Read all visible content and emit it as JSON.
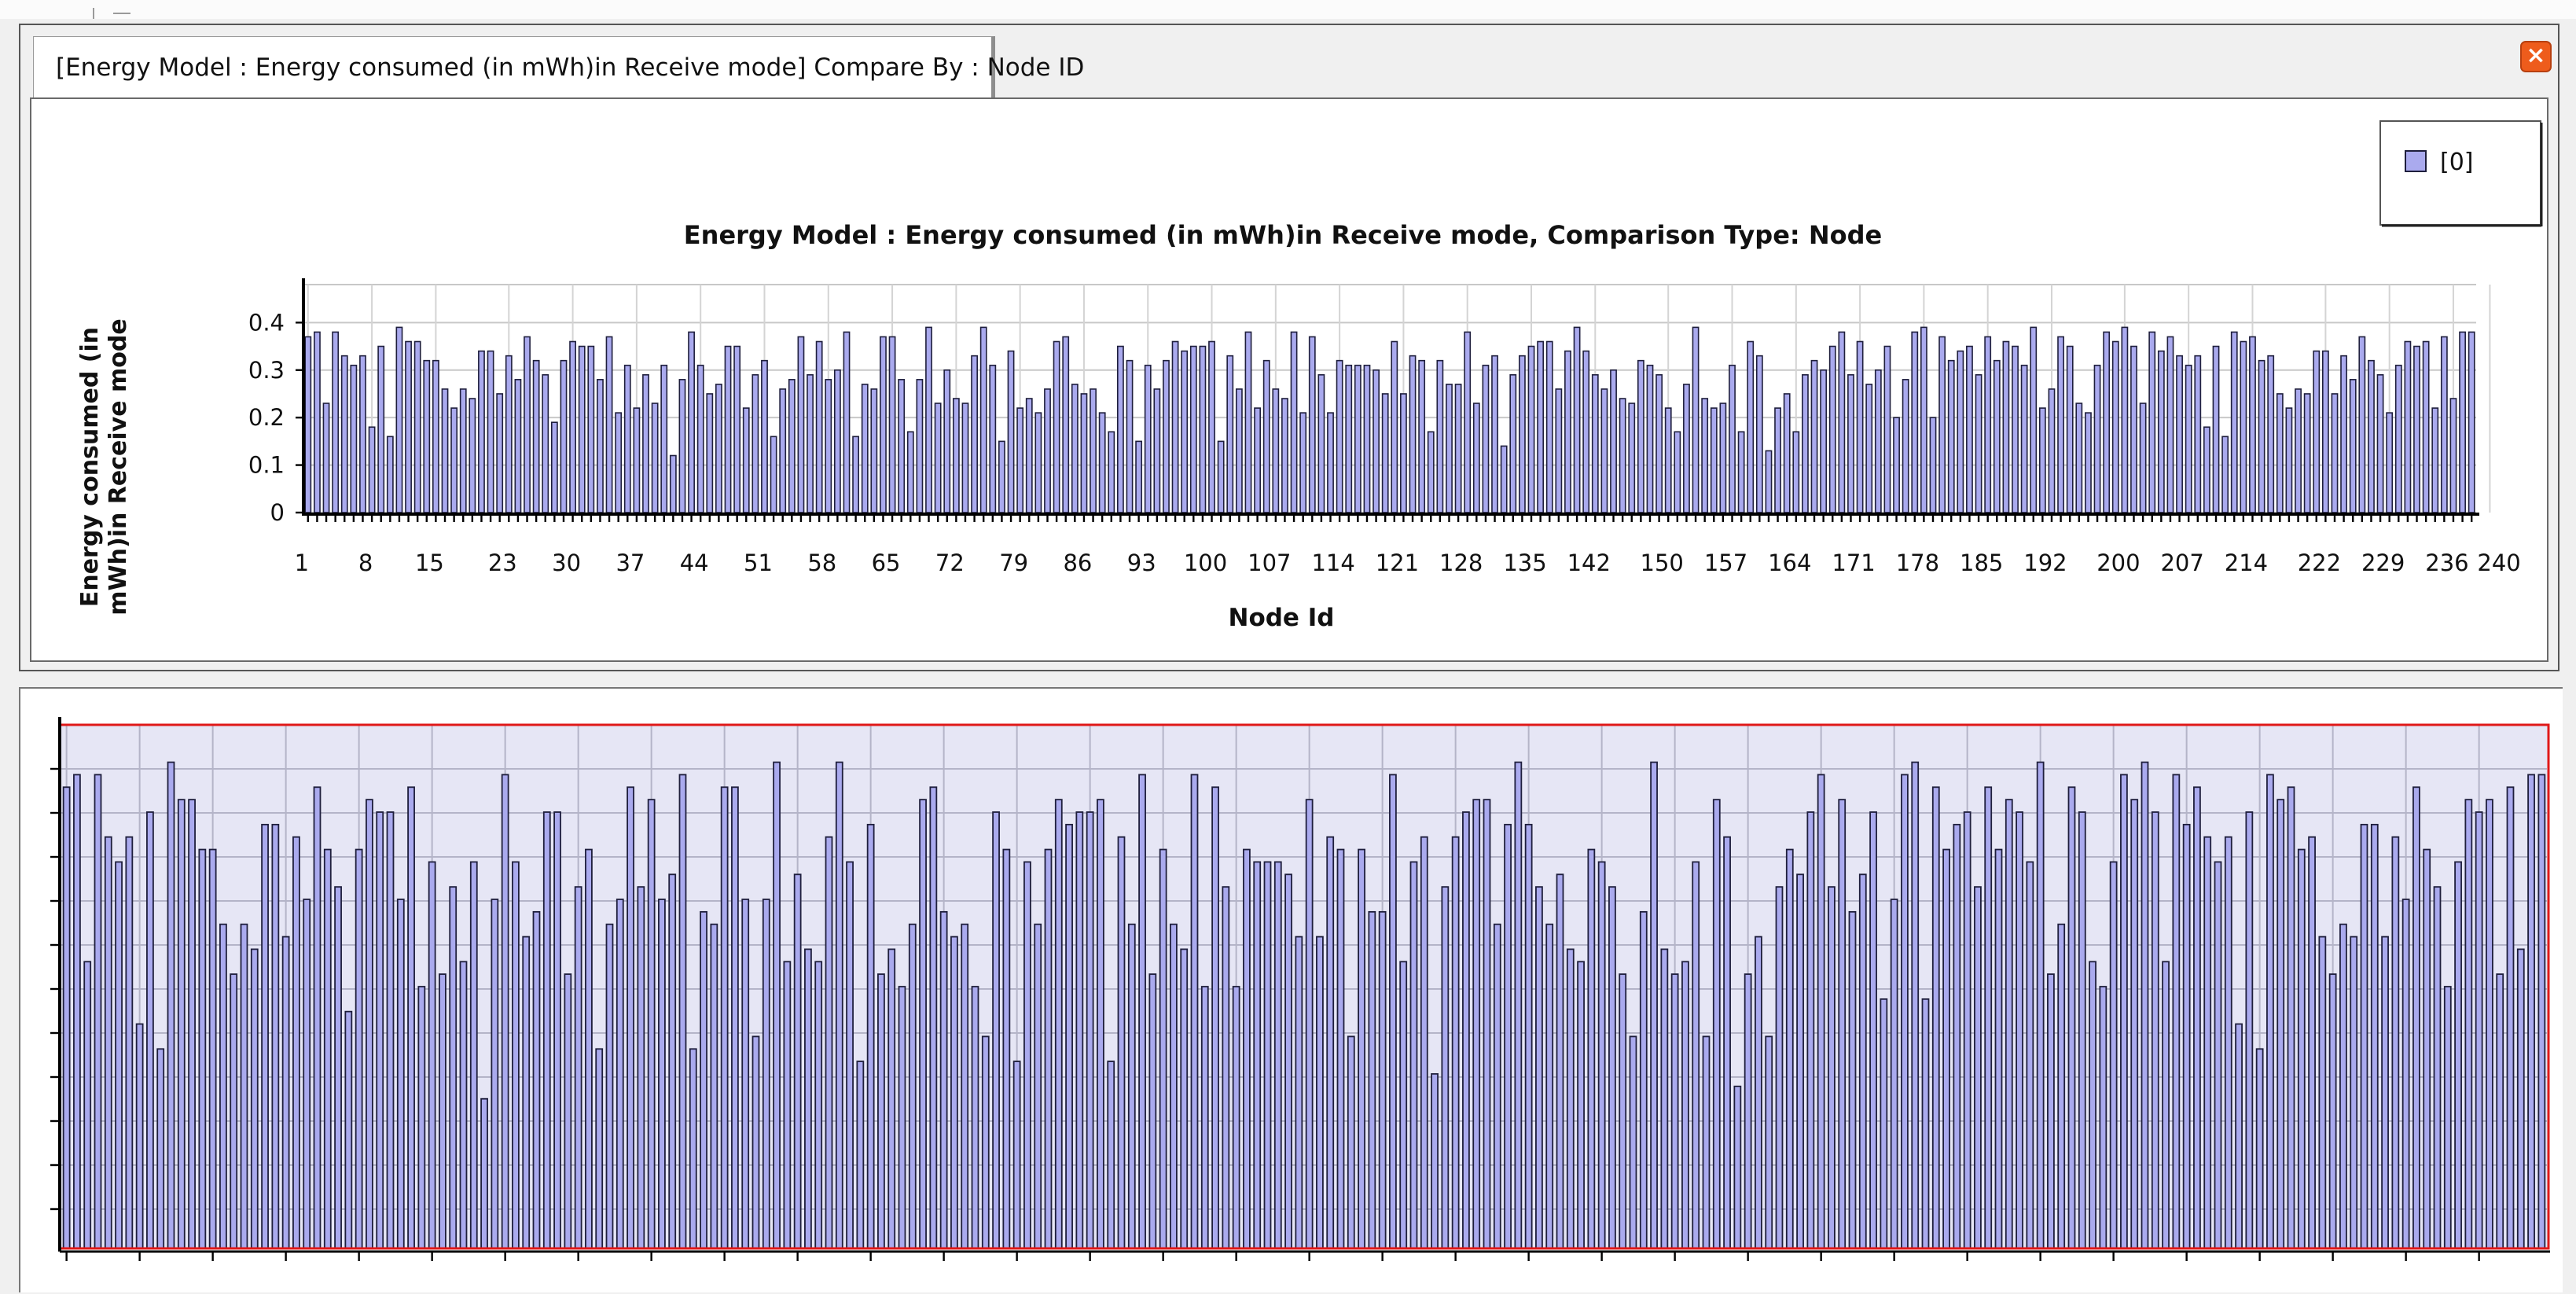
{
  "tab": {
    "label": "[Energy Model :  Energy consumed (in mWh)in Receive mode] Compare By : Node ID"
  },
  "icons": {
    "close": "close-icon"
  },
  "colors": {
    "bar_fill": "#aaaaee",
    "bar_stroke": "#1e1e3c",
    "bottom_bg": "#e6e6f5",
    "bottom_border": "#e01818"
  },
  "chart_data": [
    {
      "type": "bar",
      "title": "Energy Model :  Energy consumed (in mWh)in Receive mode, Comparison Type: Node",
      "xlabel": "Node Id",
      "ylabel": "Energy consumed (in mWh)in Receive mode",
      "legend": [
        "[0]"
      ],
      "legend_position": "top-right",
      "grid": true,
      "ylim": [
        0,
        0.48
      ],
      "y_ticks": [
        "0",
        "0.1",
        "0.2",
        "0.3",
        "0.4"
      ],
      "x_tick_labels": [
        "1",
        "8",
        "15",
        "23",
        "30",
        "37",
        "44",
        "51",
        "58",
        "65",
        "72",
        "79",
        "86",
        "93",
        "100",
        "107",
        "114",
        "121",
        "128",
        "135",
        "142",
        "150",
        "157",
        "164",
        "171",
        "178",
        "185",
        "192",
        "200",
        "207",
        "214",
        "222",
        "229",
        "236",
        "240"
      ],
      "x_tick_positions": [
        1,
        8,
        15,
        23,
        30,
        37,
        44,
        51,
        58,
        65,
        72,
        79,
        86,
        93,
        100,
        107,
        114,
        121,
        128,
        135,
        142,
        150,
        157,
        164,
        171,
        178,
        185,
        192,
        200,
        207,
        214,
        222,
        229,
        236,
        240
      ],
      "x_range": [
        1,
        240
      ],
      "series": [
        {
          "name": "[0]",
          "values": [
            0.37,
            0.38,
            0.23,
            0.38,
            0.33,
            0.31,
            0.33,
            0.18,
            0.35,
            0.16,
            0.39,
            0.36,
            0.36,
            0.32,
            0.32,
            0.26,
            0.22,
            0.26,
            0.24,
            0.34,
            0.34,
            0.25,
            0.33,
            0.28,
            0.37,
            0.32,
            0.29,
            0.19,
            0.32,
            0.36,
            0.35,
            0.35,
            0.28,
            0.37,
            0.21,
            0.31,
            0.22,
            0.29,
            0.23,
            0.31,
            0.12,
            0.28,
            0.38,
            0.31,
            0.25,
            0.27,
            0.35,
            0.35,
            0.22,
            0.29,
            0.32,
            0.16,
            0.26,
            0.28,
            0.37,
            0.29,
            0.36,
            0.28,
            0.3,
            0.38,
            0.16,
            0.27,
            0.26,
            0.37,
            0.37,
            0.28,
            0.17,
            0.28,
            0.39,
            0.23,
            0.3,
            0.24,
            0.23,
            0.33,
            0.39,
            0.31,
            0.15,
            0.34,
            0.22,
            0.24,
            0.21,
            0.26,
            0.36,
            0.37,
            0.27,
            0.25,
            0.26,
            0.21,
            0.17,
            0.35,
            0.32,
            0.15,
            0.31,
            0.26,
            0.32,
            0.36,
            0.34,
            0.35,
            0.35,
            0.36,
            0.15,
            0.33,
            0.26,
            0.38,
            0.22,
            0.32,
            0.26,
            0.24,
            0.38,
            0.21,
            0.37,
            0.29,
            0.21,
            0.32,
            0.31,
            0.31,
            0.31,
            0.3,
            0.25,
            0.36,
            0.25,
            0.33,
            0.32,
            0.17,
            0.32,
            0.27,
            0.27,
            0.38,
            0.23,
            0.31,
            0.33,
            0.14,
            0.29,
            0.33,
            0.35,
            0.36,
            0.36,
            0.26,
            0.34,
            0.39,
            0.34,
            0.29,
            0.26,
            0.3,
            0.24,
            0.23,
            0.32,
            0.31,
            0.29,
            0.22,
            0.17,
            0.27,
            0.39,
            0.24,
            0.22,
            0.23,
            0.31,
            0.17,
            0.36,
            0.33,
            0.13,
            0.22,
            0.25,
            0.17,
            0.29,
            0.32,
            0.3,
            0.35,
            0.38,
            0.29,
            0.36,
            0.27,
            0.3,
            0.35,
            0.2,
            0.28,
            0.38,
            0.39,
            0.2,
            0.37,
            0.32,
            0.34,
            0.35,
            0.29,
            0.37,
            0.32,
            0.36,
            0.35,
            0.31,
            0.39,
            0.22,
            0.26,
            0.37,
            0.35,
            0.23,
            0.21,
            0.31,
            0.38,
            0.36,
            0.39,
            0.35,
            0.23,
            0.38,
            0.34,
            0.37,
            0.33,
            0.31,
            0.33,
            0.18,
            0.35,
            0.16,
            0.38,
            0.36,
            0.37,
            0.32,
            0.33,
            0.25,
            0.22,
            0.26,
            0.25,
            0.34,
            0.34,
            0.25,
            0.33,
            0.28,
            0.37,
            0.32,
            0.29,
            0.21,
            0.31,
            0.36,
            0.35,
            0.36,
            0.22,
            0.37,
            0.24,
            0.38,
            0.38
          ]
        }
      ]
    },
    {
      "type": "bar",
      "grid": true,
      "ylim": [
        0,
        0.42
      ],
      "series": [
        {
          "values": [
            0.37,
            0.38,
            0.23,
            0.38,
            0.33,
            0.31,
            0.33,
            0.18,
            0.35,
            0.16,
            0.39,
            0.36,
            0.36,
            0.32,
            0.32,
            0.26,
            0.22,
            0.26,
            0.24,
            0.34,
            0.34,
            0.25,
            0.33,
            0.28,
            0.37,
            0.32,
            0.29,
            0.19,
            0.32,
            0.36,
            0.35,
            0.35,
            0.28,
            0.37,
            0.21,
            0.31,
            0.22,
            0.29,
            0.23,
            0.31,
            0.12,
            0.28,
            0.38,
            0.31,
            0.25,
            0.27,
            0.35,
            0.35,
            0.22,
            0.29,
            0.32,
            0.16,
            0.26,
            0.28,
            0.37,
            0.29,
            0.36,
            0.28,
            0.3,
            0.38,
            0.16,
            0.27,
            0.26,
            0.37,
            0.37,
            0.28,
            0.17,
            0.28,
            0.39,
            0.23,
            0.3,
            0.24,
            0.23,
            0.33,
            0.39,
            0.31,
            0.15,
            0.34,
            0.22,
            0.24,
            0.21,
            0.26,
            0.36,
            0.37,
            0.27,
            0.25,
            0.26,
            0.21,
            0.17,
            0.35,
            0.32,
            0.15,
            0.31,
            0.26,
            0.32,
            0.36,
            0.34,
            0.35,
            0.35,
            0.36,
            0.15,
            0.33,
            0.26,
            0.38,
            0.22,
            0.32,
            0.26,
            0.24,
            0.38,
            0.21,
            0.37,
            0.29,
            0.21,
            0.32,
            0.31,
            0.31,
            0.31,
            0.3,
            0.25,
            0.36,
            0.25,
            0.33,
            0.32,
            0.17,
            0.32,
            0.27,
            0.27,
            0.38,
            0.23,
            0.31,
            0.33,
            0.14,
            0.29,
            0.33,
            0.35,
            0.36,
            0.36,
            0.26,
            0.34,
            0.39,
            0.34,
            0.29,
            0.26,
            0.3,
            0.24,
            0.23,
            0.32,
            0.31,
            0.29,
            0.22,
            0.17,
            0.27,
            0.39,
            0.24,
            0.22,
            0.23,
            0.31,
            0.17,
            0.36,
            0.33,
            0.13,
            0.22,
            0.25,
            0.17,
            0.29,
            0.32,
            0.3,
            0.35,
            0.38,
            0.29,
            0.36,
            0.27,
            0.3,
            0.35,
            0.2,
            0.28,
            0.38,
            0.39,
            0.2,
            0.37,
            0.32,
            0.34,
            0.35,
            0.29,
            0.37,
            0.32,
            0.36,
            0.35,
            0.31,
            0.39,
            0.22,
            0.26,
            0.37,
            0.35,
            0.23,
            0.21,
            0.31,
            0.38,
            0.36,
            0.39,
            0.35,
            0.23,
            0.38,
            0.34,
            0.37,
            0.33,
            0.31,
            0.33,
            0.18,
            0.35,
            0.16,
            0.38,
            0.36,
            0.37,
            0.32,
            0.33,
            0.25,
            0.22,
            0.26,
            0.25,
            0.34,
            0.34,
            0.25,
            0.33,
            0.28,
            0.37,
            0.32,
            0.29,
            0.21,
            0.31,
            0.36,
            0.35,
            0.36,
            0.22,
            0.37,
            0.24,
            0.38,
            0.38
          ]
        }
      ]
    }
  ]
}
